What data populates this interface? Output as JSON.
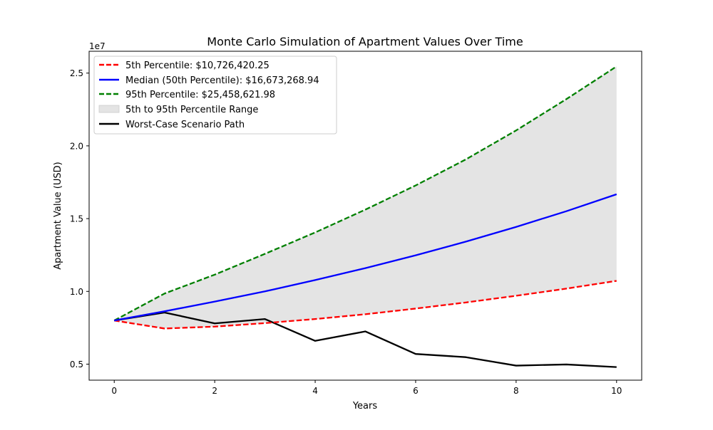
{
  "chart_data": {
    "type": "line",
    "title": "Monte Carlo Simulation of Apartment Values Over Time",
    "xlabel": "Years",
    "ylabel": "Apartment Value (USD)",
    "y_offset_text": "1e7",
    "xlim": [
      -0.5,
      10.5
    ],
    "ylim": [
      3900000,
      26500000
    ],
    "x_ticks": [
      0,
      2,
      4,
      6,
      8,
      10
    ],
    "x_tick_labels": [
      "0",
      "2",
      "4",
      "6",
      "8",
      "10"
    ],
    "y_ticks": [
      5000000,
      10000000,
      15000000,
      20000000,
      25000000
    ],
    "y_tick_labels": [
      "0.5",
      "1.0",
      "1.5",
      "2.0",
      "2.5"
    ],
    "x": [
      0,
      1,
      2,
      3,
      4,
      5,
      6,
      7,
      8,
      9,
      10
    ],
    "grid": false,
    "legend_position": "upper-left",
    "series": [
      {
        "name": "5th Percentile: $10,726,420.25",
        "color": "#ff0000",
        "style": "dashed",
        "values": [
          8000000,
          7450000,
          7580000,
          7820000,
          8100000,
          8430000,
          8820000,
          9240000,
          9700000,
          10190000,
          10726420.25
        ]
      },
      {
        "name": "Median (50th Percentile): $16,673,268.94",
        "color": "#0000ff",
        "style": "solid",
        "values": [
          8000000,
          8630000,
          9300000,
          10000000,
          10780000,
          11600000,
          12480000,
          13420000,
          14430000,
          15510000,
          16673268.94
        ]
      },
      {
        "name": "95th Percentile: $25,458,621.98",
        "color": "#008000",
        "style": "dashed",
        "values": [
          8000000,
          9850000,
          11150000,
          12580000,
          14050000,
          15620000,
          17280000,
          19070000,
          21060000,
          23210000,
          25458621.98
        ]
      },
      {
        "name": "Worst-Case Scenario Path",
        "color": "#000000",
        "style": "solid",
        "values": [
          8000000,
          8550000,
          7800000,
          8100000,
          6600000,
          7250000,
          5700000,
          5480000,
          4900000,
          4980000,
          4800000
        ]
      }
    ],
    "band": {
      "name": "5th to 95th Percentile Range",
      "color": "#e4e4e4",
      "lower_series": 0,
      "upper_series": 2
    }
  }
}
